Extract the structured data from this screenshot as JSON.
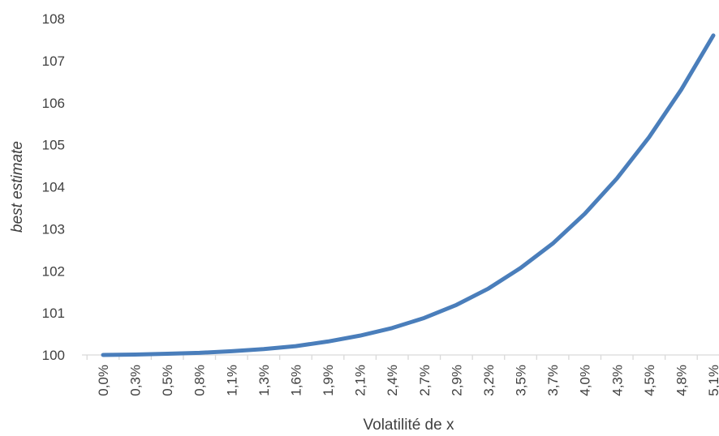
{
  "chart_data": {
    "type": "line",
    "title": "",
    "xlabel": "Volatilité de x",
    "ylabel": "best estimate",
    "ylim": [
      100,
      108
    ],
    "yticks": [
      "100",
      "101",
      "102",
      "103",
      "104",
      "105",
      "106",
      "107",
      "108"
    ],
    "categories": [
      "0,0%",
      "0,3%",
      "0,5%",
      "0,8%",
      "1,1%",
      "1,3%",
      "1,6%",
      "1,9%",
      "2,1%",
      "2,4%",
      "2,7%",
      "2,9%",
      "3,2%",
      "3,5%",
      "3,7%",
      "4,0%",
      "4,3%",
      "4,5%",
      "4,8%",
      "5,1%"
    ],
    "series": [
      {
        "name": "",
        "color": "#4a7ebb",
        "values": [
          100.0,
          100.01,
          100.03,
          100.05,
          100.09,
          100.14,
          100.21,
          100.32,
          100.46,
          100.64,
          100.88,
          101.19,
          101.58,
          102.07,
          102.65,
          103.36,
          104.2,
          105.18,
          106.31,
          107.6
        ]
      }
    ],
    "grid": false,
    "legend": "none"
  }
}
